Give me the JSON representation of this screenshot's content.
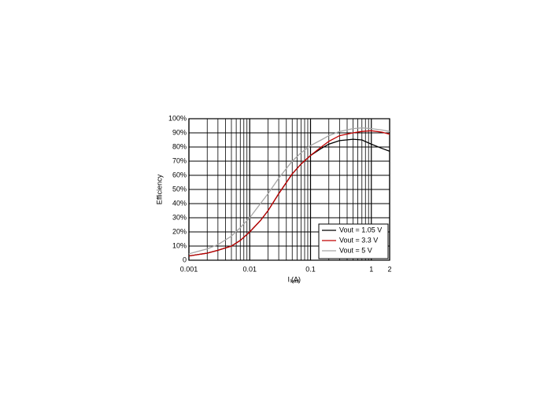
{
  "chart_data": {
    "type": "line",
    "xlabel": {
      "main": "I",
      "sub": "load",
      "rest": "(A)"
    },
    "ylabel": "Efficiency",
    "xscale": "log",
    "x": [
      0.001,
      0.002,
      0.003,
      0.005,
      0.007,
      0.01,
      0.015,
      0.02,
      0.03,
      0.05,
      0.07,
      0.1,
      0.15,
      0.2,
      0.3,
      0.5,
      0.7,
      1,
      1.5,
      2
    ],
    "series": [
      {
        "name": "Vout = 1.05 V",
        "color": "#000000",
        "values": [
          3,
          5,
          7,
          10,
          14,
          20,
          28,
          35,
          47,
          61,
          68,
          74,
          79,
          82,
          84.5,
          85.5,
          85,
          82,
          79,
          77
        ]
      },
      {
        "name": "Vout = 3.3 V",
        "color": "#c00000",
        "values": [
          3,
          5,
          7,
          10,
          14,
          20,
          28,
          35,
          47,
          61,
          68,
          74,
          80,
          84,
          88,
          90,
          91,
          91.5,
          90.5,
          89
        ]
      },
      {
        "name": "Vout = 5 V",
        "color": "#a6a6a6",
        "values": [
          4.5,
          8,
          11,
          17,
          23,
          30,
          40,
          47,
          58,
          70,
          76,
          81,
          85,
          88,
          91,
          93,
          93.5,
          93,
          92,
          91
        ]
      }
    ],
    "xlim": [
      0.001,
      2
    ],
    "xticks": [
      0.001,
      0.01,
      0.1,
      1,
      2
    ],
    "xminorticks": [
      0.002,
      0.003,
      0.004,
      0.005,
      0.006,
      0.007,
      0.008,
      0.009,
      0.02,
      0.03,
      0.04,
      0.05,
      0.06,
      0.07,
      0.08,
      0.09,
      0.2,
      0.3,
      0.4,
      0.5,
      0.6,
      0.7,
      0.8,
      0.9
    ],
    "ylim": [
      0,
      100
    ],
    "yticks": [
      0,
      {
        "value": 10,
        "label": "10%"
      },
      {
        "value": 20,
        "label": "20%"
      },
      {
        "value": 30,
        "label": "30%"
      },
      {
        "value": 40,
        "label": "40%"
      },
      {
        "value": 50,
        "label": "50%"
      },
      {
        "value": 60,
        "label": "60%"
      },
      {
        "value": 70,
        "label": "70%"
      },
      {
        "value": 80,
        "label": "80%"
      },
      {
        "value": 90,
        "label": "90%"
      },
      {
        "value": 100,
        "label": "100%"
      }
    ],
    "grid": true,
    "legend": "lower right"
  }
}
